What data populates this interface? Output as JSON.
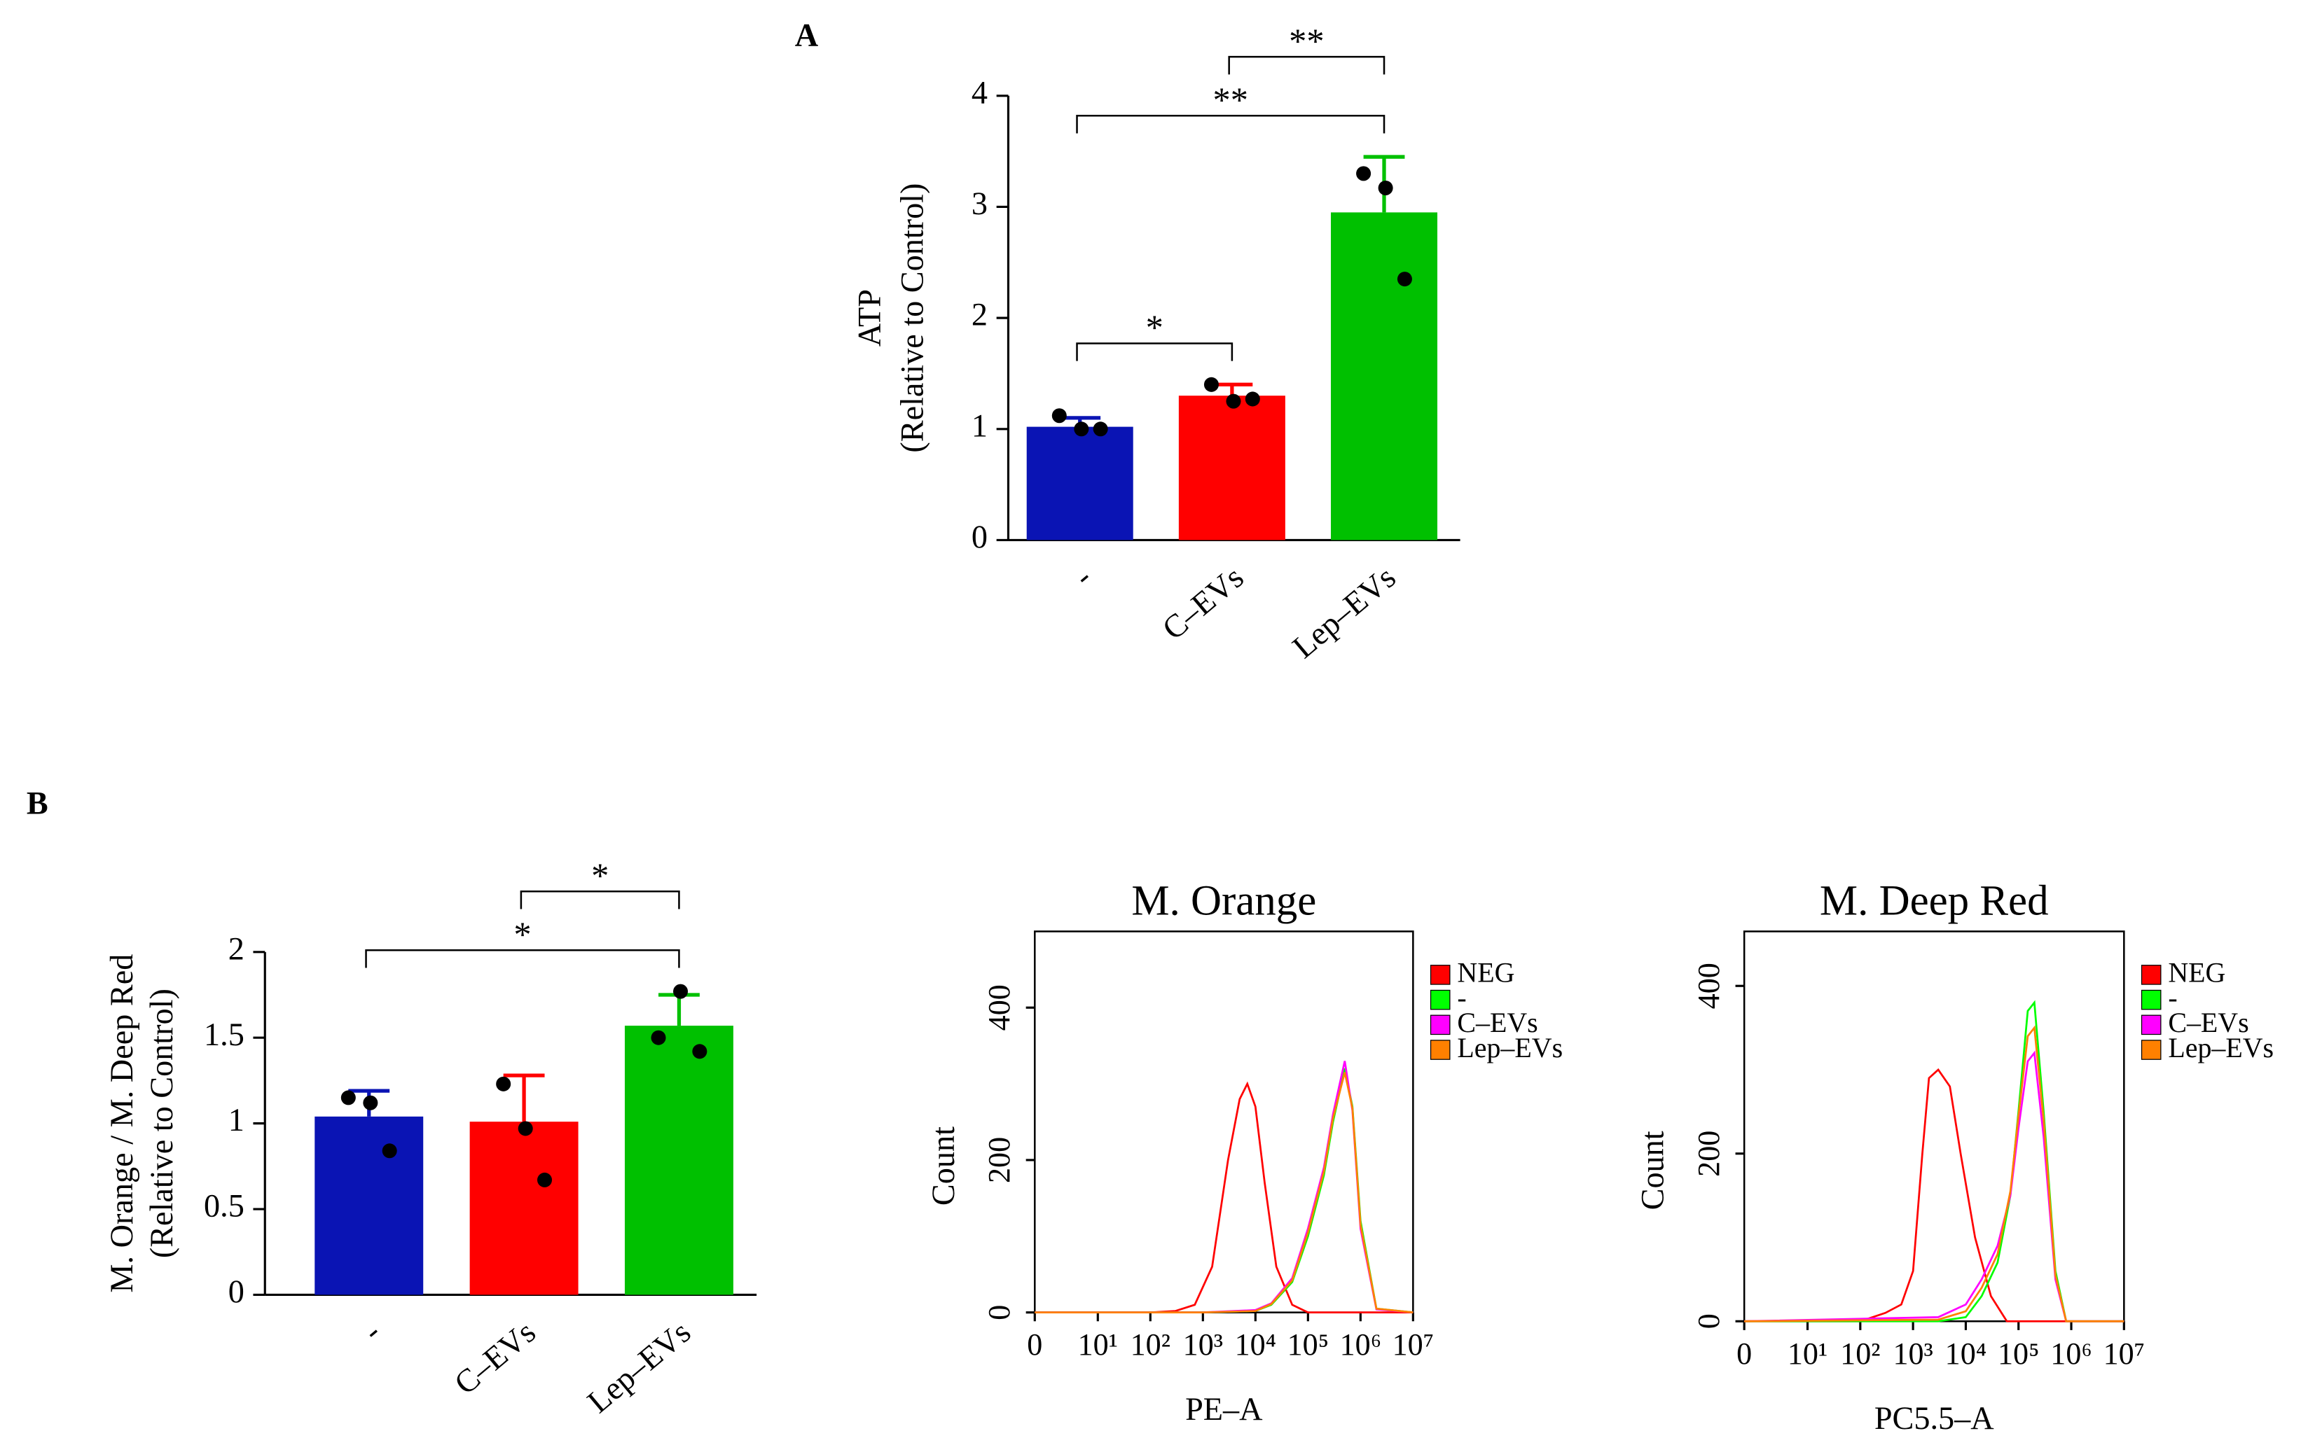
{
  "chart_data": [
    {
      "panel": "A",
      "type": "bar",
      "y_label": [
        "ATP",
        "(Relative to Control)"
      ],
      "categories": [
        "-",
        "C–EVs",
        "Lep–EVs"
      ],
      "values": [
        1.02,
        1.3,
        2.95
      ],
      "errors": [
        0.08,
        0.1,
        0.5
      ],
      "points": [
        [
          1.12,
          1.0,
          1.0
        ],
        [
          1.4,
          1.25,
          1.27
        ],
        [
          3.3,
          3.17,
          2.35
        ]
      ],
      "colors": [
        "#0a14b4",
        "#ff0000",
        "#00c000"
      ],
      "ylim": [
        0,
        4
      ],
      "yticks": [
        0,
        1,
        2,
        3,
        4
      ],
      "significance": [
        {
          "between": [
            0,
            1
          ],
          "label": "*"
        },
        {
          "between": [
            0,
            2
          ],
          "label": "**"
        },
        {
          "between": [
            1,
            2
          ],
          "label": "**"
        }
      ]
    },
    {
      "panel": "B",
      "type": "bar",
      "y_label": [
        "M. Orange / M. Deep Red",
        "(Relative to Control)"
      ],
      "categories": [
        "-",
        "C–EVs",
        "Lep–EVs"
      ],
      "values": [
        1.04,
        1.01,
        1.57
      ],
      "errors": [
        0.15,
        0.27,
        0.18
      ],
      "points": [
        [
          1.15,
          1.12,
          0.84
        ],
        [
          1.23,
          0.97,
          0.67
        ],
        [
          1.5,
          1.77,
          1.42
        ]
      ],
      "colors": [
        "#0a14b4",
        "#ff0000",
        "#00c000"
      ],
      "ylim": [
        0,
        2
      ],
      "yticks": [
        0,
        0.5,
        1,
        1.5,
        2
      ],
      "significance": [
        {
          "between": [
            0,
            2
          ],
          "label": "*"
        },
        {
          "between": [
            1,
            2
          ],
          "label": "*"
        }
      ]
    },
    {
      "type": "line",
      "title": "M. Orange",
      "x_label": "PE–A",
      "y_label": "Count",
      "xscale": "biexponential",
      "legend": "right",
      "xlim": [
        0,
        10000000
      ],
      "xticks": [
        0,
        {
          "value": 10,
          "label": "10¹"
        },
        {
          "value": 100,
          "label": "10²"
        },
        {
          "value": 1000,
          "label": "10³"
        },
        {
          "value": 10000,
          "label": "10⁴"
        },
        {
          "value": 100000,
          "label": "10⁵"
        },
        {
          "value": 1000000,
          "label": "10⁶"
        },
        {
          "value": 10000000,
          "label": "10⁷"
        }
      ],
      "ylim": [
        0,
        500
      ],
      "yticks": [
        0,
        200,
        400
      ],
      "series": [
        {
          "name": "NEG",
          "color": "#ff0000",
          "x": [
            0,
            100,
            300,
            700,
            1500,
            3000,
            5000,
            7000,
            10000,
            15000,
            25000,
            50000,
            100000,
            1000000,
            10000000
          ],
          "values": [
            0,
            0,
            2,
            10,
            60,
            200,
            280,
            300,
            270,
            170,
            60,
            10,
            0,
            0,
            0
          ]
        },
        {
          "name": "-",
          "color": "#00ff00",
          "x": [
            0,
            1000,
            10000,
            20000,
            50000,
            100000,
            200000,
            300000,
            500000,
            700000,
            1000000,
            2000000,
            10000000
          ],
          "values": [
            0,
            0,
            2,
            10,
            40,
            100,
            180,
            250,
            320,
            270,
            120,
            5,
            0
          ]
        },
        {
          "name": "C–EVs",
          "color": "#ff00ff",
          "x": [
            0,
            1000,
            10000,
            20000,
            50000,
            100000,
            200000,
            300000,
            500000,
            700000,
            1000000,
            2000000,
            10000000
          ],
          "values": [
            0,
            0,
            3,
            12,
            45,
            110,
            190,
            260,
            330,
            265,
            110,
            4,
            0
          ]
        },
        {
          "name": "Lep–EVs",
          "color": "#ff8000",
          "x": [
            0,
            1000,
            10000,
            20000,
            50000,
            100000,
            200000,
            300000,
            500000,
            700000,
            1000000,
            2000000,
            10000000
          ],
          "values": [
            0,
            0,
            2,
            11,
            42,
            105,
            185,
            255,
            315,
            268,
            115,
            5,
            0
          ]
        }
      ]
    },
    {
      "type": "line",
      "title": "M. Deep Red",
      "x_label": "PC5.5–A",
      "y_label": "Count",
      "xscale": "biexponential",
      "legend": "right",
      "xlim": [
        0,
        10000000
      ],
      "xticks": [
        0,
        {
          "value": 10,
          "label": "10¹"
        },
        {
          "value": 100,
          "label": "10²"
        },
        {
          "value": 1000,
          "label": "10³"
        },
        {
          "value": 10000,
          "label": "10⁴"
        },
        {
          "value": 100000,
          "label": "10⁵"
        },
        {
          "value": 1000000,
          "label": "10⁶"
        },
        {
          "value": 10000000,
          "label": "10⁷"
        }
      ],
      "ylim": [
        0,
        465
      ],
      "yticks": [
        0,
        200,
        400
      ],
      "series": [
        {
          "name": "NEG",
          "color": "#ff0000",
          "x": [
            0,
            100,
            300,
            600,
            1000,
            1500,
            2000,
            3000,
            5000,
            8000,
            15000,
            30000,
            60000,
            10000000
          ],
          "values": [
            0,
            0,
            10,
            20,
            60,
            200,
            290,
            300,
            280,
            200,
            100,
            30,
            0,
            0
          ]
        },
        {
          "name": "-",
          "color": "#00ff00",
          "x": [
            0,
            3000,
            10000,
            20000,
            40000,
            70000,
            100000,
            150000,
            200000,
            300000,
            500000,
            800000,
            10000000
          ],
          "values": [
            0,
            0,
            5,
            30,
            70,
            150,
            250,
            370,
            380,
            250,
            60,
            0,
            0
          ]
        },
        {
          "name": "C–EVs",
          "color": "#ff00ff",
          "x": [
            0,
            3000,
            10000,
            20000,
            40000,
            70000,
            100000,
            150000,
            200000,
            300000,
            500000,
            800000,
            10000000
          ],
          "values": [
            0,
            5,
            20,
            50,
            90,
            150,
            230,
            310,
            320,
            220,
            50,
            0,
            0
          ]
        },
        {
          "name": "Lep–EVs",
          "color": "#ff8000",
          "x": [
            0,
            3000,
            10000,
            20000,
            40000,
            70000,
            100000,
            150000,
            200000,
            300000,
            500000,
            800000,
            10000000
          ],
          "values": [
            0,
            2,
            12,
            40,
            80,
            155,
            245,
            340,
            350,
            240,
            55,
            0,
            0
          ]
        }
      ]
    }
  ]
}
